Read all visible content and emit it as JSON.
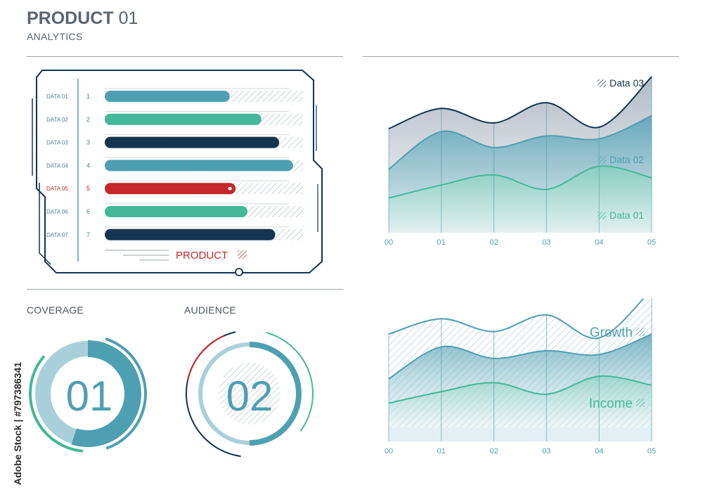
{
  "header": {
    "title_bold": "PRODUCT",
    "title_num": "01",
    "subtitle": "ANALYTICS"
  },
  "sections": {
    "coverage": "COVERAGE",
    "audience": "AUDIENCE"
  },
  "side_text": "Adobe Stock | #797386341",
  "colors": {
    "teal": "#4f9fb2",
    "green": "#44b898",
    "navy": "#14344f",
    "red": "#c4282a",
    "light": "#a9d0da",
    "hatch": "#b8c6cc"
  },
  "chart_data": [
    {
      "type": "bar",
      "categories": [
        "DATA 01",
        "DATA 02",
        "DATA 03",
        "DATA 04",
        "DATA 05",
        "DATA 06",
        "DATA 07"
      ],
      "ranks": [
        "1",
        "2",
        "3",
        "4",
        "5",
        "6",
        "7"
      ],
      "values": [
        0.63,
        0.79,
        0.88,
        0.95,
        0.66,
        0.72,
        0.86
      ],
      "bar_colors": [
        "#4f9fb2",
        "#44b898",
        "#14344f",
        "#4f9fb2",
        "#c4282a",
        "#44b898",
        "#14344f"
      ],
      "highlight_index": 4,
      "footer_label": "PRODUCT"
    },
    {
      "type": "area",
      "x": [
        "00",
        "01",
        "02",
        "03",
        "04",
        "05"
      ],
      "series": [
        {
          "name": "Data 03",
          "values": [
            0.72,
            0.86,
            0.76,
            0.9,
            0.73,
            1.08
          ]
        },
        {
          "name": "Data 02",
          "values": [
            0.44,
            0.7,
            0.59,
            0.67,
            0.65,
            0.81
          ]
        },
        {
          "name": "Data 01",
          "values": [
            0.24,
            0.33,
            0.4,
            0.3,
            0.46,
            0.38
          ]
        }
      ],
      "ylim": [
        0,
        1.1
      ]
    },
    {
      "type": "area",
      "x": [
        "00",
        "01",
        "02",
        "03",
        "04",
        "05"
      ],
      "series": [
        {
          "name": "Growth",
          "values": [
            0.73,
            0.85,
            0.75,
            0.88,
            0.7,
            1.08
          ]
        },
        {
          "name": "",
          "values": [
            0.38,
            0.63,
            0.54,
            0.6,
            0.57,
            0.73
          ]
        },
        {
          "name": "Income",
          "values": [
            0.19,
            0.28,
            0.35,
            0.26,
            0.4,
            0.33
          ]
        }
      ],
      "ylim": [
        0,
        1.1
      ]
    },
    {
      "type": "pie",
      "name": "COVERAGE",
      "center_label": "01",
      "values": [
        0.55
      ]
    },
    {
      "type": "pie",
      "name": "AUDIENCE",
      "center_label": "02",
      "values": [
        0.5
      ]
    }
  ]
}
